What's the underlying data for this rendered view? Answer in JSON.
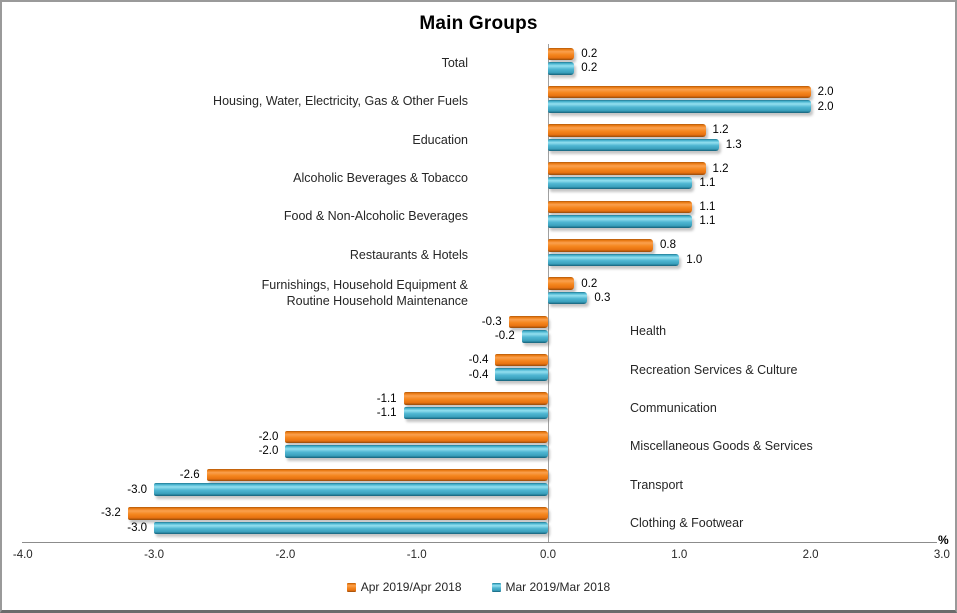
{
  "chart_data": {
    "type": "bar",
    "orientation": "horizontal",
    "title": "Main Groups",
    "x_unit": "%",
    "xlim": [
      -4.0,
      3.0
    ],
    "xticks": [
      -4.0,
      -3.0,
      -2.0,
      -1.0,
      0.0,
      1.0,
      2.0,
      3.0
    ],
    "grid": false,
    "legend_position": "bottom",
    "value_labels": true,
    "categories": [
      "Total",
      "Housing, Water, Electricity, Gas & Other Fuels",
      "Education",
      "Alcoholic Beverages  & Tobacco",
      "Food &  Non-Alcoholic Beverages",
      "Restaurants & Hotels",
      "Furnishings, Household Equipment &\nRoutine Household Maintenance",
      "Health",
      "Recreation Services & Culture",
      "Communication",
      "Miscellaneous Goods & Services",
      "Transport",
      "Clothing & Footwear"
    ],
    "series": [
      {
        "name": "Apr 2019/Apr 2018",
        "color": "#ED7D31",
        "values": [
          0.2,
          2.0,
          1.2,
          1.2,
          1.1,
          0.8,
          0.2,
          -0.3,
          -0.4,
          -1.1,
          -2.0,
          -2.6,
          -3.2
        ]
      },
      {
        "name": "Mar 2019/Mar 2018",
        "color": "#4BACC6",
        "values": [
          0.2,
          2.0,
          1.3,
          1.1,
          1.1,
          1.0,
          0.3,
          -0.2,
          -0.4,
          -1.1,
          -2.0,
          -3.0,
          -3.0
        ]
      }
    ]
  }
}
